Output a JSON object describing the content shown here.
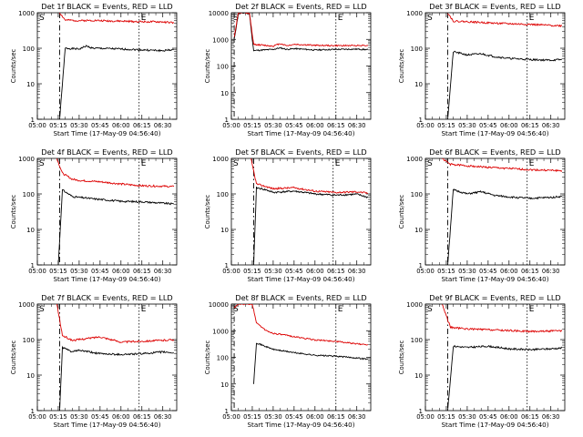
{
  "colors": {
    "events": "#000000",
    "lld": "#dd0000",
    "axis": "#000000",
    "background": "#ffffff"
  },
  "chart_data": [
    {
      "type": "line",
      "detector": "1f",
      "title": "Det 1f BLACK = Events, RED = LLD",
      "xlabel": "Start Time (17-May-09 04:56:40)",
      "ylabel": "Counts/sec",
      "x_ticks": [
        "05:00",
        "05:15",
        "05:30",
        "05:45",
        "06:00",
        "06:15",
        "06:30"
      ],
      "y_ticks": [
        "1",
        "10",
        "100",
        "1000"
      ],
      "ylim": [
        1,
        1000
      ],
      "log_y": true,
      "markers": {
        "start": "S",
        "end": "E",
        "start_time": "05:16",
        "end_time": "06:13"
      },
      "series": [
        {
          "role": "events",
          "color": "#000000",
          "x": [
            "05:16",
            "05:20",
            "05:30",
            "05:35",
            "05:40",
            "05:50",
            "06:00",
            "06:15",
            "06:30",
            "06:38"
          ],
          "values": [
            1,
            100,
            95,
            115,
            100,
            98,
            95,
            90,
            85,
            92
          ]
        },
        {
          "role": "lld",
          "color": "#dd0000",
          "x": [
            "05:16",
            "05:20",
            "05:30",
            "05:40",
            "05:50",
            "06:00",
            "06:15",
            "06:30",
            "06:38"
          ],
          "values": [
            1000,
            620,
            600,
            610,
            590,
            580,
            560,
            550,
            520
          ]
        }
      ]
    },
    {
      "type": "line",
      "detector": "2f",
      "title": "Det 2f BLACK = Events, RED = LLD",
      "xlabel": "Start Time (17-May-09 04:56:40)",
      "ylabel": "Counts/sec",
      "x_ticks": [
        "05:00",
        "05:15",
        "05:30",
        "05:45",
        "06:00",
        "06:15",
        "06:30"
      ],
      "y_ticks": [
        "1",
        "10",
        "100",
        "1000",
        "10000"
      ],
      "ylim": [
        1,
        10000
      ],
      "log_y": true,
      "markers": {
        "start": "S",
        "end": "E",
        "start_time": "05:02",
        "end_time": "06:15"
      },
      "series": [
        {
          "role": "events",
          "color": "#000000",
          "x": [
            "05:02",
            "05:05",
            "05:10",
            "05:13",
            "05:15",
            "05:16",
            "05:30",
            "05:35",
            "05:40",
            "05:45",
            "06:00",
            "06:15",
            "06:30",
            "06:38"
          ],
          "values": [
            1000,
            9000,
            10000,
            9000,
            1000,
            380,
            420,
            480,
            420,
            450,
            400,
            420,
            430,
            410
          ]
        },
        {
          "role": "lld",
          "color": "#dd0000",
          "x": [
            "05:02",
            "05:05",
            "05:10",
            "05:13",
            "05:16",
            "05:30",
            "05:35",
            "05:40",
            "05:45",
            "06:00",
            "06:15",
            "06:30",
            "06:38"
          ],
          "values": [
            1200,
            10000,
            10000,
            9000,
            650,
            560,
            700,
            580,
            650,
            600,
            580,
            590,
            600
          ]
        }
      ]
    },
    {
      "type": "line",
      "detector": "3f",
      "title": "Det 3f BLACK = Events, RED = LLD",
      "xlabel": "Start Time (17-May-09 04:56:40)",
      "ylabel": "Counts/sec",
      "x_ticks": [
        "05:00",
        "05:15",
        "05:30",
        "05:45",
        "06:00",
        "06:15",
        "06:30"
      ],
      "y_ticks": [
        "1",
        "10",
        "100",
        "1000"
      ],
      "ylim": [
        1,
        1000
      ],
      "log_y": true,
      "markers": {
        "start": "S",
        "end": "E",
        "start_time": "05:16",
        "end_time": "06:13"
      },
      "series": [
        {
          "role": "events",
          "color": "#000000",
          "x": [
            "05:16",
            "05:20",
            "05:30",
            "05:40",
            "05:50",
            "06:00",
            "06:15",
            "06:30",
            "06:38"
          ],
          "values": [
            1,
            80,
            65,
            70,
            58,
            52,
            48,
            46,
            48
          ]
        },
        {
          "role": "lld",
          "color": "#dd0000",
          "x": [
            "05:16",
            "05:20",
            "05:30",
            "05:45",
            "06:00",
            "06:15",
            "06:30",
            "06:38"
          ],
          "values": [
            1000,
            580,
            560,
            520,
            490,
            470,
            440,
            430
          ]
        }
      ]
    },
    {
      "type": "line",
      "detector": "4f",
      "title": "Det 4f BLACK = Events, RED = LLD",
      "xlabel": "Start Time (17-May-09 04:56:40)",
      "ylabel": "Counts/sec",
      "x_ticks": [
        "05:00",
        "05:15",
        "05:30",
        "05:45",
        "06:00",
        "06:15",
        "06:30"
      ],
      "y_ticks": [
        "1",
        "10",
        "100",
        "1000"
      ],
      "ylim": [
        1,
        1000
      ],
      "log_y": true,
      "markers": {
        "start": "S",
        "end": "E",
        "start_time": "05:16",
        "end_time": "06:13"
      },
      "series": [
        {
          "role": "events",
          "color": "#000000",
          "x": [
            "05:15",
            "05:18",
            "05:25",
            "05:30",
            "05:45",
            "06:00",
            "06:15",
            "06:30",
            "06:38"
          ],
          "values": [
            1,
            130,
            85,
            80,
            70,
            62,
            60,
            55,
            52
          ]
        },
        {
          "role": "lld",
          "color": "#dd0000",
          "x": [
            "05:14",
            "05:18",
            "05:25",
            "05:30",
            "05:45",
            "06:00",
            "06:15",
            "06:30",
            "06:38"
          ],
          "values": [
            1000,
            380,
            260,
            240,
            220,
            190,
            170,
            165,
            160
          ]
        }
      ]
    },
    {
      "type": "line",
      "detector": "5f",
      "title": "Det 5f BLACK = Events, RED = LLD",
      "xlabel": "Start Time (17-May-09 04:56:40)",
      "ylabel": "Counts/sec",
      "x_ticks": [
        "05:00",
        "05:15",
        "05:30",
        "05:45",
        "06:00",
        "06:15",
        "06:30"
      ],
      "y_ticks": [
        "1",
        "10",
        "100",
        "1000"
      ],
      "ylim": [
        1,
        1000
      ],
      "log_y": true,
      "markers": {
        "start": "S",
        "end": "E",
        "start_time": "05:16",
        "end_time": "06:13"
      },
      "series": [
        {
          "role": "events",
          "color": "#000000",
          "x": [
            "05:16",
            "05:18",
            "05:25",
            "05:30",
            "05:45",
            "06:00",
            "06:15",
            "06:30",
            "06:38"
          ],
          "values": [
            1,
            150,
            130,
            110,
            120,
            100,
            92,
            98,
            80
          ]
        },
        {
          "role": "lld",
          "color": "#dd0000",
          "x": [
            "05:14",
            "05:18",
            "05:25",
            "05:30",
            "05:45",
            "06:00",
            "06:15",
            "06:30",
            "06:38"
          ],
          "values": [
            1000,
            190,
            160,
            140,
            150,
            120,
            110,
            115,
            105
          ]
        }
      ]
    },
    {
      "type": "line",
      "detector": "6f",
      "title": "Det 6f BLACK = Events, RED = LLD",
      "xlabel": "Start Time (17-May-09 04:56:40)",
      "ylabel": "Counts/sec",
      "x_ticks": [
        "05:00",
        "05:15",
        "05:30",
        "05:45",
        "06:00",
        "06:15",
        "06:30"
      ],
      "y_ticks": [
        "1",
        "10",
        "100",
        "1000"
      ],
      "ylim": [
        1,
        1000
      ],
      "log_y": true,
      "markers": {
        "start": "S",
        "end": "E",
        "start_time": "05:16",
        "end_time": "06:13"
      },
      "series": [
        {
          "role": "events",
          "color": "#000000",
          "x": [
            "05:16",
            "05:20",
            "05:30",
            "05:40",
            "05:50",
            "06:00",
            "06:15",
            "06:30",
            "06:38"
          ],
          "values": [
            1,
            130,
            100,
            115,
            90,
            82,
            75,
            80,
            85
          ]
        },
        {
          "role": "lld",
          "color": "#dd0000",
          "x": [
            "05:12",
            "05:18",
            "05:30",
            "05:45",
            "06:00",
            "06:15",
            "06:30",
            "06:38"
          ],
          "values": [
            1000,
            680,
            620,
            560,
            520,
            480,
            460,
            450
          ]
        }
      ]
    },
    {
      "type": "line",
      "detector": "7f",
      "title": "Det 7f BLACK = Events, RED = LLD",
      "xlabel": "Start Time (17-May-09 04:56:40)",
      "ylabel": "Counts/sec",
      "x_ticks": [
        "05:00",
        "05:15",
        "05:30",
        "05:45",
        "06:00",
        "06:15",
        "06:30"
      ],
      "y_ticks": [
        "1",
        "10",
        "100",
        "1000"
      ],
      "ylim": [
        1,
        1000
      ],
      "log_y": true,
      "markers": {
        "start": "S",
        "end": "E",
        "start_time": "05:16",
        "end_time": "06:13"
      },
      "series": [
        {
          "role": "events",
          "color": "#000000",
          "x": [
            "05:16",
            "05:18",
            "05:25",
            "05:30",
            "05:45",
            "06:00",
            "06:15",
            "06:30",
            "06:38"
          ],
          "values": [
            1,
            60,
            45,
            50,
            40,
            38,
            40,
            45,
            42
          ]
        },
        {
          "role": "lld",
          "color": "#dd0000",
          "x": [
            "05:14",
            "05:18",
            "05:25",
            "05:30",
            "05:45",
            "06:00",
            "06:15",
            "06:30",
            "06:38"
          ],
          "values": [
            1000,
            130,
            95,
            100,
            120,
            85,
            90,
            95,
            100
          ]
        }
      ]
    },
    {
      "type": "line",
      "detector": "8f",
      "title": "Det 8f BLACK = Events, RED = LLD",
      "xlabel": "Start Time (17-May-09 04:56:40)",
      "ylabel": "Counts/sec",
      "x_ticks": [
        "05:00",
        "05:15",
        "05:30",
        "05:45",
        "06:00",
        "06:15",
        "06:30"
      ],
      "y_ticks": [
        "1",
        "10",
        "100",
        "1000",
        "10000"
      ],
      "ylim": [
        1,
        10000
      ],
      "log_y": true,
      "markers": {
        "start": "S",
        "end": "E",
        "start_time": "05:02",
        "end_time": "06:15"
      },
      "series": [
        {
          "role": "events",
          "color": "#000000",
          "x": [
            "05:16",
            "05:18",
            "05:25",
            "05:30",
            "05:45",
            "06:00",
            "06:15",
            "06:30",
            "06:38"
          ],
          "values": [
            10,
            350,
            250,
            200,
            150,
            120,
            110,
            95,
            85
          ]
        },
        {
          "role": "lld",
          "color": "#dd0000",
          "x": [
            "05:02",
            "05:05",
            "05:10",
            "05:15",
            "05:18",
            "05:25",
            "05:30",
            "05:45",
            "06:00",
            "06:15",
            "06:30",
            "06:38"
          ],
          "values": [
            7000,
            10000,
            10000,
            10000,
            2000,
            1000,
            800,
            600,
            450,
            400,
            320,
            300
          ]
        }
      ]
    },
    {
      "type": "line",
      "detector": "9f",
      "title": "Det 9f BLACK = Events, RED = LLD",
      "xlabel": "Start Time (17-May-09 04:56:40)",
      "ylabel": "Counts/sec",
      "x_ticks": [
        "05:00",
        "05:15",
        "05:30",
        "05:45",
        "06:00",
        "06:15",
        "06:30"
      ],
      "y_ticks": [
        "1",
        "10",
        "100",
        "1000"
      ],
      "ylim": [
        1,
        1000
      ],
      "log_y": true,
      "markers": {
        "start": "S",
        "end": "E",
        "start_time": "05:16",
        "end_time": "06:13"
      },
      "series": [
        {
          "role": "events",
          "color": "#000000",
          "x": [
            "05:16",
            "05:20",
            "05:30",
            "05:45",
            "06:00",
            "06:15",
            "06:30",
            "06:38"
          ],
          "values": [
            1,
            65,
            60,
            65,
            55,
            52,
            55,
            58
          ]
        },
        {
          "role": "lld",
          "color": "#dd0000",
          "x": [
            "05:12",
            "05:18",
            "05:30",
            "05:45",
            "06:00",
            "06:15",
            "06:30",
            "06:38"
          ],
          "values": [
            1000,
            220,
            200,
            190,
            180,
            170,
            175,
            175
          ]
        }
      ]
    }
  ]
}
